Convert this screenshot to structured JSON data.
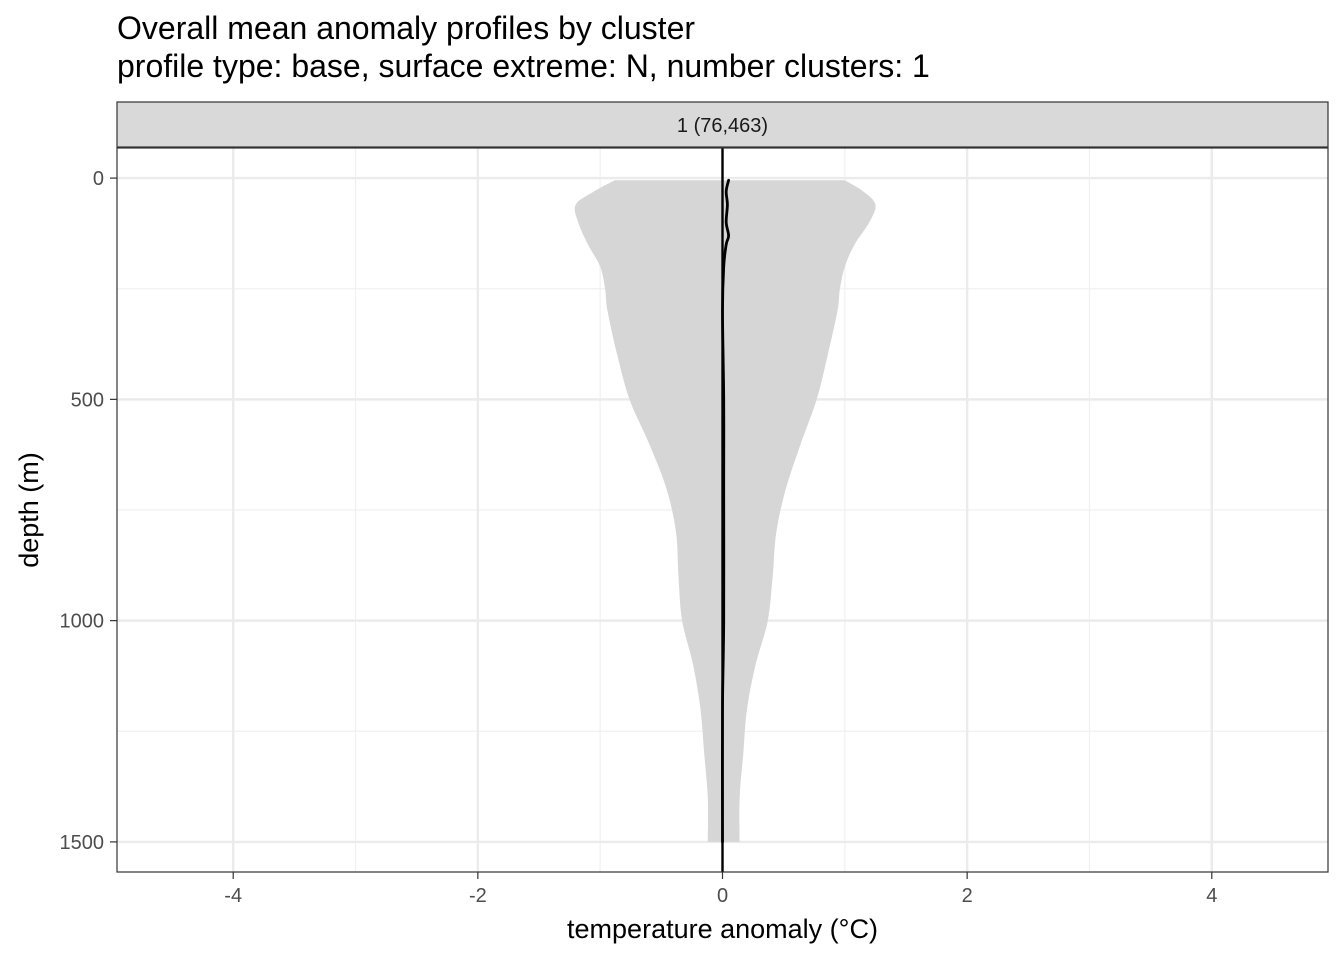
{
  "chart_data": {
    "type": "area",
    "title": "Overall mean anomaly profiles by cluster",
    "subtitle": "profile type: base, surface extreme: N, number clusters: 1",
    "facet_label": "1 (76,463)",
    "xlabel": "temperature anomaly (°C)",
    "ylabel": "depth (m)",
    "xlim": [
      -4.95,
      4.95
    ],
    "ylim": [
      -68,
      1568
    ],
    "y_reversed": true,
    "x_ticks": [
      -4,
      -2,
      0,
      2,
      4
    ],
    "x_tick_labels": [
      "-4",
      "-2",
      "0",
      "2",
      "4"
    ],
    "y_ticks": [
      0,
      500,
      1000,
      1500
    ],
    "y_tick_labels": [
      "0",
      "500",
      "1000",
      "1500"
    ],
    "grid": true,
    "zero_line": {
      "x": 0,
      "color": "#000000"
    },
    "series": [
      {
        "kind": "ribbon",
        "color": "#d6d6d6",
        "depth": [
          5,
          30,
          60,
          100,
          150,
          200,
          250,
          300,
          400,
          500,
          600,
          700,
          800,
          900,
          1000,
          1100,
          1200,
          1300,
          1400,
          1500
        ],
        "lower": [
          -0.88,
          -1.05,
          -1.2,
          -1.18,
          -1.1,
          -1.0,
          -0.96,
          -0.94,
          -0.86,
          -0.76,
          -0.6,
          -0.46,
          -0.38,
          -0.36,
          -0.33,
          -0.24,
          -0.18,
          -0.15,
          -0.12,
          -0.12
        ],
        "upper": [
          1.0,
          1.15,
          1.25,
          1.2,
          1.08,
          1.0,
          0.96,
          0.94,
          0.86,
          0.77,
          0.64,
          0.52,
          0.44,
          0.41,
          0.37,
          0.27,
          0.2,
          0.17,
          0.14,
          0.14
        ]
      },
      {
        "kind": "line",
        "color": "#000000",
        "depth": [
          5,
          30,
          60,
          100,
          130,
          150,
          200,
          300,
          500,
          700,
          1000,
          1200,
          1500
        ],
        "values": [
          0.05,
          0.03,
          0.04,
          0.03,
          0.05,
          0.03,
          0.01,
          0.0,
          0.01,
          0.01,
          0.01,
          0.0,
          0.0
        ]
      }
    ]
  }
}
